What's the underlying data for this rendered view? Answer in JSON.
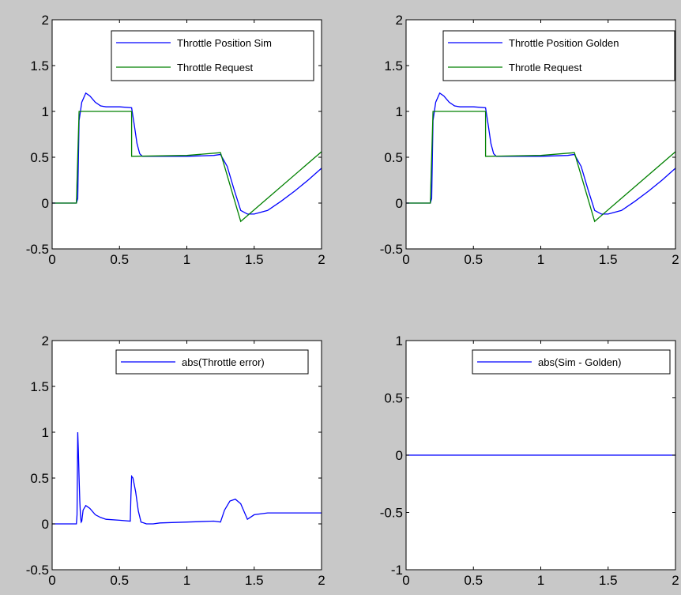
{
  "figure": {
    "background": "#c8c8c8",
    "axes_background": "#ffffff"
  },
  "colors": {
    "blue": "#0000ff",
    "green": "#008000"
  },
  "chart_data": [
    {
      "type": "line",
      "xlim": [
        0,
        2
      ],
      "ylim": [
        -0.5,
        2
      ],
      "xticks": [
        "0",
        "0.5",
        "1",
        "1.5",
        "2"
      ],
      "yticks": [
        "-0.5",
        "0",
        "0.5",
        "1",
        "1.5",
        "2"
      ],
      "legend_placement": "top-right",
      "grid": false,
      "series": [
        {
          "name": "Throttle Position Sim",
          "color": "#0000ff",
          "x": [
            0,
            0.18,
            0.19,
            0.2,
            0.21,
            0.22,
            0.25,
            0.28,
            0.32,
            0.36,
            0.4,
            0.5,
            0.59,
            0.61,
            0.63,
            0.65,
            0.67,
            0.7,
            0.75,
            0.8,
            1.0,
            1.2,
            1.25,
            1.3,
            1.35,
            1.4,
            1.45,
            1.5,
            1.6,
            1.7,
            1.8,
            1.9,
            2.0
          ],
          "y": [
            0,
            0,
            0.05,
            0.9,
            1.0,
            1.1,
            1.2,
            1.17,
            1.1,
            1.06,
            1.05,
            1.05,
            1.04,
            0.85,
            0.65,
            0.54,
            0.51,
            0.51,
            0.51,
            0.51,
            0.51,
            0.52,
            0.53,
            0.4,
            0.15,
            -0.08,
            -0.12,
            -0.12,
            -0.08,
            0.02,
            0.13,
            0.25,
            0.38
          ]
        },
        {
          "name": "Throttle Request",
          "color": "#008000",
          "x": [
            0,
            0.18,
            0.2,
            0.59,
            0.59,
            1.0,
            1.25,
            1.4,
            2.0
          ],
          "y": [
            0,
            0,
            1,
            1,
            0.51,
            0.52,
            0.55,
            -0.2,
            0.56
          ]
        }
      ]
    },
    {
      "type": "line",
      "xlim": [
        0,
        2
      ],
      "ylim": [
        -0.5,
        2
      ],
      "xticks": [
        "0",
        "0.5",
        "1",
        "1.5",
        "2"
      ],
      "yticks": [
        "-0.5",
        "0",
        "0.5",
        "1",
        "1.5",
        "2"
      ],
      "legend_placement": "top-right",
      "grid": false,
      "series": [
        {
          "name": "Throttle Position Golden",
          "color": "#0000ff",
          "x": [
            0,
            0.18,
            0.19,
            0.2,
            0.21,
            0.22,
            0.25,
            0.28,
            0.32,
            0.36,
            0.4,
            0.5,
            0.59,
            0.61,
            0.63,
            0.65,
            0.67,
            0.7,
            0.75,
            0.8,
            1.0,
            1.2,
            1.25,
            1.3,
            1.35,
            1.4,
            1.45,
            1.5,
            1.6,
            1.7,
            1.8,
            1.9,
            2.0
          ],
          "y": [
            0,
            0,
            0.05,
            0.9,
            1.0,
            1.1,
            1.2,
            1.17,
            1.1,
            1.06,
            1.05,
            1.05,
            1.04,
            0.85,
            0.65,
            0.54,
            0.51,
            0.51,
            0.51,
            0.51,
            0.51,
            0.52,
            0.53,
            0.4,
            0.15,
            -0.08,
            -0.12,
            -0.12,
            -0.08,
            0.02,
            0.13,
            0.25,
            0.38
          ]
        },
        {
          "name": "Throtle Request",
          "color": "#008000",
          "x": [
            0,
            0.18,
            0.2,
            0.59,
            0.59,
            1.0,
            1.25,
            1.4,
            2.0
          ],
          "y": [
            0,
            0,
            1,
            1,
            0.51,
            0.52,
            0.55,
            -0.2,
            0.56
          ]
        }
      ]
    },
    {
      "type": "line",
      "xlim": [
        0,
        2
      ],
      "ylim": [
        -0.5,
        2
      ],
      "xticks": [
        "0",
        "0.5",
        "1",
        "1.5",
        "2"
      ],
      "yticks": [
        "-0.5",
        "0",
        "0.5",
        "1",
        "1.5",
        "2"
      ],
      "legend_placement": "top-right",
      "grid": false,
      "series": [
        {
          "name": "abs(Throttle error)",
          "color": "#0000ff",
          "x": [
            0,
            0.18,
            0.185,
            0.19,
            0.195,
            0.2,
            0.205,
            0.21,
            0.215,
            0.22,
            0.23,
            0.25,
            0.28,
            0.32,
            0.36,
            0.4,
            0.5,
            0.58,
            0.585,
            0.59,
            0.6,
            0.62,
            0.64,
            0.66,
            0.68,
            0.7,
            0.75,
            0.8,
            1.0,
            1.2,
            1.25,
            1.28,
            1.32,
            1.36,
            1.4,
            1.45,
            1.5,
            1.6,
            1.8,
            2.0
          ],
          "y": [
            0,
            0,
            0.1,
            1.0,
            0.8,
            0.5,
            0.25,
            0.1,
            0.02,
            0.03,
            0.15,
            0.2,
            0.17,
            0.1,
            0.07,
            0.05,
            0.04,
            0.03,
            0.3,
            0.52,
            0.5,
            0.35,
            0.14,
            0.02,
            0.01,
            0.0,
            0.0,
            0.01,
            0.02,
            0.03,
            0.02,
            0.15,
            0.25,
            0.27,
            0.22,
            0.05,
            0.1,
            0.12,
            0.12,
            0.12
          ]
        }
      ]
    },
    {
      "type": "line",
      "xlim": [
        0,
        2
      ],
      "ylim": [
        -1,
        1
      ],
      "xticks": [
        "0",
        "0.5",
        "1",
        "1.5",
        "2"
      ],
      "yticks": [
        "-1",
        "-0.5",
        "0",
        "0.5",
        "1"
      ],
      "legend_placement": "top-right",
      "grid": false,
      "series": [
        {
          "name": "abs(Sim - Golden)",
          "color": "#0000ff",
          "x": [
            0,
            2
          ],
          "y": [
            0,
            0
          ]
        }
      ]
    }
  ]
}
